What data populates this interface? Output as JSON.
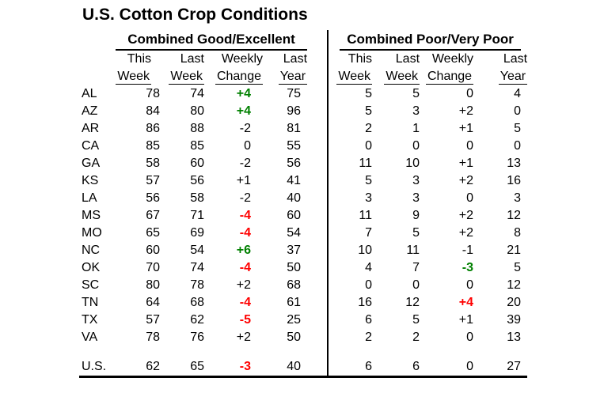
{
  "title": "U.S. Cotton Crop Conditions",
  "colors": {
    "positive_green": "#008000",
    "negative_red": "#ff0000",
    "text": "#000000",
    "background": "#ffffff"
  },
  "chart_data": {
    "type": "table",
    "title": "U.S. Cotton Crop Conditions",
    "sections": [
      {
        "label": "Combined Good/Excellent"
      },
      {
        "label": "Combined Poor/Very Poor"
      }
    ],
    "columns_line1": [
      "This",
      "Last",
      "Weekly",
      "Last"
    ],
    "columns_line2": [
      "Week",
      "Week",
      "Change",
      "Year"
    ],
    "rows": [
      {
        "state": "AL",
        "good": {
          "this_week": 78,
          "last_week": 74,
          "change": "+4",
          "change_style": "green",
          "last_year": 75
        },
        "poor": {
          "this_week": 5,
          "last_week": 5,
          "change": "0",
          "change_style": "plain",
          "last_year": 4
        }
      },
      {
        "state": "AZ",
        "good": {
          "this_week": 84,
          "last_week": 80,
          "change": "+4",
          "change_style": "green",
          "last_year": 96
        },
        "poor": {
          "this_week": 5,
          "last_week": 3,
          "change": "+2",
          "change_style": "plain",
          "last_year": 0
        }
      },
      {
        "state": "AR",
        "good": {
          "this_week": 86,
          "last_week": 88,
          "change": "-2",
          "change_style": "plain",
          "last_year": 81
        },
        "poor": {
          "this_week": 2,
          "last_week": 1,
          "change": "+1",
          "change_style": "plain",
          "last_year": 5
        }
      },
      {
        "state": "CA",
        "good": {
          "this_week": 85,
          "last_week": 85,
          "change": "0",
          "change_style": "plain",
          "last_year": 55
        },
        "poor": {
          "this_week": 0,
          "last_week": 0,
          "change": "0",
          "change_style": "plain",
          "last_year": 0
        }
      },
      {
        "state": "GA",
        "good": {
          "this_week": 58,
          "last_week": 60,
          "change": "-2",
          "change_style": "plain",
          "last_year": 56
        },
        "poor": {
          "this_week": 11,
          "last_week": 10,
          "change": "+1",
          "change_style": "plain",
          "last_year": 13
        }
      },
      {
        "state": "KS",
        "good": {
          "this_week": 57,
          "last_week": 56,
          "change": "+1",
          "change_style": "plain",
          "last_year": 41
        },
        "poor": {
          "this_week": 5,
          "last_week": 3,
          "change": "+2",
          "change_style": "plain",
          "last_year": 16
        }
      },
      {
        "state": "LA",
        "good": {
          "this_week": 56,
          "last_week": 58,
          "change": "-2",
          "change_style": "plain",
          "last_year": 40
        },
        "poor": {
          "this_week": 3,
          "last_week": 3,
          "change": "0",
          "change_style": "plain",
          "last_year": 3
        }
      },
      {
        "state": "MS",
        "good": {
          "this_week": 67,
          "last_week": 71,
          "change": "-4",
          "change_style": "red",
          "last_year": 60
        },
        "poor": {
          "this_week": 11,
          "last_week": 9,
          "change": "+2",
          "change_style": "plain",
          "last_year": 12
        }
      },
      {
        "state": "MO",
        "good": {
          "this_week": 65,
          "last_week": 69,
          "change": "-4",
          "change_style": "red",
          "last_year": 54
        },
        "poor": {
          "this_week": 7,
          "last_week": 5,
          "change": "+2",
          "change_style": "plain",
          "last_year": 8
        }
      },
      {
        "state": "NC",
        "good": {
          "this_week": 60,
          "last_week": 54,
          "change": "+6",
          "change_style": "green",
          "last_year": 37
        },
        "poor": {
          "this_week": 10,
          "last_week": 11,
          "change": "-1",
          "change_style": "plain",
          "last_year": 21
        }
      },
      {
        "state": "OK",
        "good": {
          "this_week": 70,
          "last_week": 74,
          "change": "-4",
          "change_style": "red",
          "last_year": 50
        },
        "poor": {
          "this_week": 4,
          "last_week": 7,
          "change": "-3",
          "change_style": "green",
          "last_year": 5
        }
      },
      {
        "state": "SC",
        "good": {
          "this_week": 80,
          "last_week": 78,
          "change": "+2",
          "change_style": "plain",
          "last_year": 68
        },
        "poor": {
          "this_week": 0,
          "last_week": 0,
          "change": "0",
          "change_style": "plain",
          "last_year": 12
        }
      },
      {
        "state": "TN",
        "good": {
          "this_week": 64,
          "last_week": 68,
          "change": "-4",
          "change_style": "red",
          "last_year": 61
        },
        "poor": {
          "this_week": 16,
          "last_week": 12,
          "change": "+4",
          "change_style": "red",
          "last_year": 20
        }
      },
      {
        "state": "TX",
        "good": {
          "this_week": 57,
          "last_week": 62,
          "change": "-5",
          "change_style": "red",
          "last_year": 25
        },
        "poor": {
          "this_week": 6,
          "last_week": 5,
          "change": "+1",
          "change_style": "plain",
          "last_year": 39
        }
      },
      {
        "state": "VA",
        "good": {
          "this_week": 78,
          "last_week": 76,
          "change": "+2",
          "change_style": "plain",
          "last_year": 50
        },
        "poor": {
          "this_week": 2,
          "last_week": 2,
          "change": "0",
          "change_style": "plain",
          "last_year": 13
        }
      }
    ],
    "total_row": {
      "state": "U.S.",
      "good": {
        "this_week": 62,
        "last_week": 65,
        "change": "-3",
        "change_style": "red",
        "last_year": 40
      },
      "poor": {
        "this_week": 6,
        "last_week": 6,
        "change": "0",
        "change_style": "plain",
        "last_year": 27
      }
    }
  }
}
